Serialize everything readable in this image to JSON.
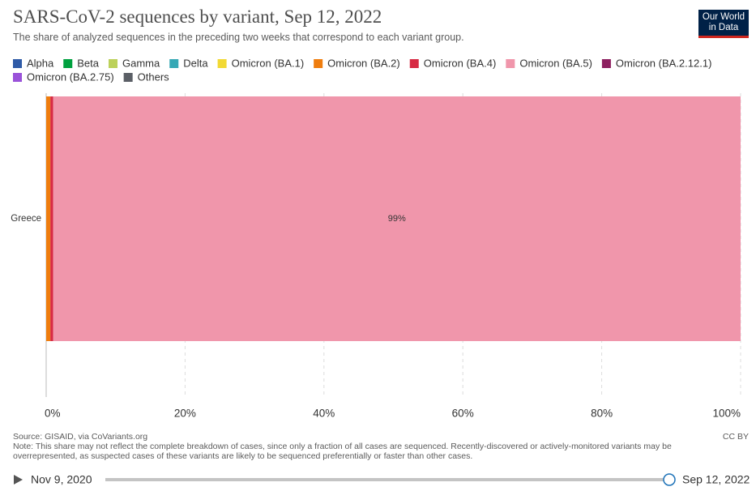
{
  "chart_data": {
    "type": "bar",
    "orientation": "horizontal",
    "stacked": true,
    "title": "SARS-CoV-2 sequences by variant, Sep 12, 2022",
    "subtitle": "The share of analyzed sequences in the preceding two weeks that correspond to each variant group.",
    "logo": [
      "Our World",
      "in Data"
    ],
    "categories": [
      "Greece"
    ],
    "series": [
      {
        "name": "Alpha",
        "color": "#2f5ba7",
        "values": [
          0
        ]
      },
      {
        "name": "Beta",
        "color": "#00a13f",
        "values": [
          0
        ]
      },
      {
        "name": "Gamma",
        "color": "#bcd15a",
        "values": [
          0
        ]
      },
      {
        "name": "Delta",
        "color": "#36a8b5",
        "values": [
          0
        ]
      },
      {
        "name": "Omicron (BA.1)",
        "color": "#f2d934",
        "values": [
          0
        ]
      },
      {
        "name": "Omicron (BA.2)",
        "color": "#ef7d0e",
        "values": [
          0.6
        ]
      },
      {
        "name": "Omicron (BA.4)",
        "color": "#d72a43",
        "values": [
          0.4
        ]
      },
      {
        "name": "Omicron (BA.5)",
        "color": "#f096ab",
        "values": [
          99.0
        ],
        "value_labels": [
          "99%"
        ]
      },
      {
        "name": "Omicron (BA.2.12.1)",
        "color": "#8d2060",
        "values": [
          0
        ]
      },
      {
        "name": "Omicron (BA.2.75)",
        "color": "#9a52d9",
        "values": [
          0
        ]
      },
      {
        "name": "Others",
        "color": "#5b5f66",
        "values": [
          0
        ]
      }
    ],
    "xlim": [
      0,
      100
    ],
    "xticks": [
      {
        "value": 0,
        "label": "0%"
      },
      {
        "value": 20,
        "label": "20%"
      },
      {
        "value": 40,
        "label": "40%"
      },
      {
        "value": 60,
        "label": "60%"
      },
      {
        "value": 80,
        "label": "80%"
      },
      {
        "value": 100,
        "label": "100%"
      }
    ],
    "grid": true,
    "source": "Source: GISAID, via CoVariants.org",
    "note": "Note: This share may not reflect the complete breakdown of cases, since only a fraction of all cases are sequenced. Recently-discovered or actively-monitored variants may be overrepresented, as suspected cases of these variants are likely to be sequenced preferentially or faster than other cases.",
    "license": "CC BY",
    "timeline_start": "Nov 9, 2020",
    "timeline_end": "Sep 12, 2022"
  }
}
